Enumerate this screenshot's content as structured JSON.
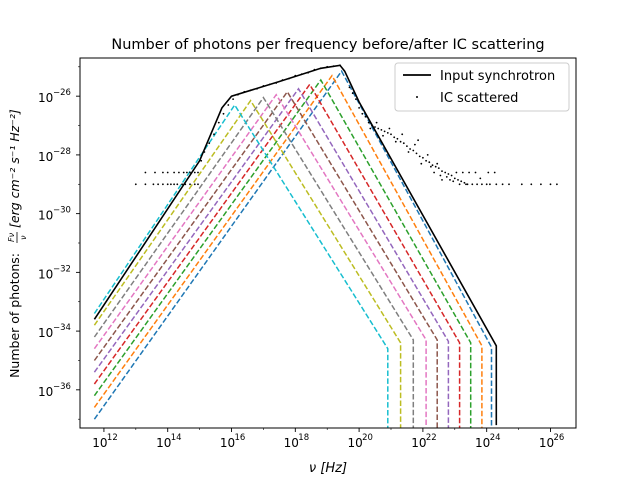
{
  "chart_data": {
    "type": "line",
    "title": "Number of photons per frequency before/after IC scattering",
    "xlabel": "ν [Hz]",
    "ylabel_main": "Number of photons: ",
    "ylabel_frac_num": "Fν",
    "ylabel_frac_den": "ν",
    "ylabel_units": "[erg cm⁻² s⁻¹ Hz⁻²]",
    "xscale": "log",
    "yscale": "log",
    "xlim_log10": [
      11.25,
      26.8
    ],
    "ylim_log10": [
      -37.3,
      -24.7
    ],
    "x_ticks": [
      {
        "exp": 12,
        "base": "10",
        "sup": "12"
      },
      {
        "exp": 14,
        "base": "10",
        "sup": "14"
      },
      {
        "exp": 16,
        "base": "10",
        "sup": "16"
      },
      {
        "exp": 18,
        "base": "10",
        "sup": "18"
      },
      {
        "exp": 20,
        "base": "10",
        "sup": "20"
      },
      {
        "exp": 22,
        "base": "10",
        "sup": "22"
      },
      {
        "exp": 24,
        "base": "10",
        "sup": "24"
      },
      {
        "exp": 26,
        "base": "10",
        "sup": "26"
      }
    ],
    "y_ticks": [
      {
        "exp": -26,
        "base": "10",
        "sup": "−26"
      },
      {
        "exp": -28,
        "base": "10",
        "sup": "−28"
      },
      {
        "exp": -30,
        "base": "10",
        "sup": "−30"
      },
      {
        "exp": -32,
        "base": "10",
        "sup": "−32"
      },
      {
        "exp": -34,
        "base": "10",
        "sup": "−34"
      },
      {
        "exp": -36,
        "base": "10",
        "sup": "−36"
      }
    ],
    "legend": {
      "placement": "top-right",
      "entries": [
        {
          "label": "Input synchrotron",
          "style": "line",
          "color": "#000000"
        },
        {
          "label": "IC scattered",
          "style": "dot",
          "color": "#000000"
        }
      ]
    },
    "synchrotron": {
      "color": "#000000",
      "points": [
        [
          11.7,
          -33.6
        ],
        [
          15.0,
          -28.2
        ],
        [
          15.7,
          -26.4
        ],
        [
          16.0,
          -26.0
        ],
        [
          17.5,
          -25.5
        ],
        [
          18.8,
          -25.05
        ],
        [
          19.4,
          -24.95
        ],
        [
          19.55,
          -25.15
        ],
        [
          20.0,
          -26.2
        ],
        [
          24.3,
          -34.5
        ],
        [
          24.3,
          -37.2
        ]
      ]
    },
    "ic_dashed_series": [
      {
        "color": "#1f77b4",
        "points": [
          [
            11.7,
            -37.0
          ],
          [
            19.45,
            -25.15
          ],
          [
            24.15,
            -34.55
          ],
          [
            24.15,
            -37.3
          ]
        ]
      },
      {
        "color": "#ff7f0e",
        "points": [
          [
            11.7,
            -36.6
          ],
          [
            19.15,
            -25.3
          ],
          [
            23.85,
            -34.5
          ],
          [
            23.85,
            -37.3
          ]
        ]
      },
      {
        "color": "#2ca02c",
        "points": [
          [
            11.7,
            -36.2
          ],
          [
            18.8,
            -25.45
          ],
          [
            23.5,
            -34.4
          ],
          [
            23.5,
            -37.3
          ]
        ]
      },
      {
        "color": "#d62728",
        "points": [
          [
            11.7,
            -35.8
          ],
          [
            18.45,
            -25.6
          ],
          [
            23.15,
            -34.4
          ],
          [
            23.15,
            -37.3
          ]
        ]
      },
      {
        "color": "#9467bd",
        "points": [
          [
            11.7,
            -35.4
          ],
          [
            18.1,
            -25.75
          ],
          [
            22.8,
            -34.35
          ],
          [
            22.8,
            -37.3
          ]
        ]
      },
      {
        "color": "#8c564b",
        "points": [
          [
            11.7,
            -35.0
          ],
          [
            17.75,
            -25.85
          ],
          [
            22.45,
            -34.3
          ],
          [
            22.45,
            -37.3
          ]
        ]
      },
      {
        "color": "#e377c2",
        "points": [
          [
            11.7,
            -34.6
          ],
          [
            17.4,
            -25.95
          ],
          [
            22.1,
            -34.3
          ],
          [
            22.1,
            -37.3
          ]
        ]
      },
      {
        "color": "#7f7f7f",
        "points": [
          [
            11.7,
            -34.2
          ],
          [
            17.0,
            -26.05
          ],
          [
            21.7,
            -34.3
          ],
          [
            21.7,
            -37.3
          ]
        ]
      },
      {
        "color": "#bcbd22",
        "points": [
          [
            11.7,
            -33.8
          ],
          [
            16.6,
            -26.15
          ],
          [
            21.3,
            -34.4
          ],
          [
            21.3,
            -37.3
          ]
        ]
      },
      {
        "color": "#17becf",
        "points": [
          [
            11.7,
            -33.4
          ],
          [
            16.1,
            -26.3
          ],
          [
            20.9,
            -34.6
          ],
          [
            20.9,
            -37.3
          ]
        ]
      }
    ],
    "ic_scatter": {
      "color": "#000000",
      "points": [
        [
          19.7,
          -25.7
        ],
        [
          19.8,
          -25.9
        ],
        [
          19.9,
          -26.1
        ],
        [
          20.0,
          -26.4
        ],
        [
          20.1,
          -26.6
        ],
        [
          20.2,
          -26.7
        ],
        [
          20.3,
          -26.9
        ],
        [
          20.4,
          -27.0
        ],
        [
          20.5,
          -27.05
        ],
        [
          20.6,
          -27.1
        ],
        [
          20.7,
          -27.15
        ],
        [
          20.8,
          -27.2
        ],
        [
          20.9,
          -27.25
        ],
        [
          21.0,
          -27.3
        ],
        [
          21.1,
          -27.4
        ],
        [
          21.2,
          -27.45
        ],
        [
          21.3,
          -27.55
        ],
        [
          21.4,
          -27.6
        ],
        [
          21.5,
          -27.7
        ],
        [
          21.6,
          -27.8
        ],
        [
          21.7,
          -27.85
        ],
        [
          21.8,
          -27.95
        ],
        [
          21.9,
          -28.05
        ],
        [
          22.0,
          -28.1
        ],
        [
          22.1,
          -28.2
        ],
        [
          22.2,
          -28.25
        ],
        [
          22.3,
          -28.35
        ],
        [
          22.4,
          -28.4
        ],
        [
          22.5,
          -28.45
        ],
        [
          22.6,
          -28.55
        ],
        [
          22.7,
          -28.6
        ],
        [
          22.8,
          -28.65
        ],
        [
          22.9,
          -28.7
        ],
        [
          23.0,
          -28.8
        ],
        [
          23.1,
          -28.85
        ],
        [
          23.2,
          -28.9
        ],
        [
          23.3,
          -28.95
        ],
        [
          23.4,
          -29.0
        ],
        [
          20.35,
          -27.1
        ],
        [
          20.55,
          -26.9
        ],
        [
          20.75,
          -27.35
        ],
        [
          20.95,
          -27.1
        ],
        [
          21.15,
          -27.55
        ],
        [
          21.35,
          -27.3
        ],
        [
          21.55,
          -27.9
        ],
        [
          21.75,
          -27.65
        ],
        [
          21.85,
          -27.5
        ],
        [
          21.95,
          -28.3
        ],
        [
          22.15,
          -28.0
        ],
        [
          22.25,
          -28.4
        ],
        [
          22.35,
          -28.6
        ],
        [
          22.45,
          -28.3
        ],
        [
          22.55,
          -28.7
        ],
        [
          22.75,
          -28.75
        ],
        [
          22.95,
          -28.9
        ],
        [
          23.15,
          -29.0
        ],
        [
          23.35,
          -29.0
        ],
        [
          23.55,
          -29.0
        ],
        [
          23.7,
          -29.0
        ],
        [
          23.85,
          -29.0
        ],
        [
          24.0,
          -29.0
        ],
        [
          24.1,
          -29.0
        ],
        [
          24.3,
          -29.0
        ],
        [
          24.5,
          -29.0
        ],
        [
          24.7,
          -29.0
        ],
        [
          25.1,
          -29.0
        ],
        [
          25.4,
          -29.0
        ],
        [
          25.7,
          -29.0
        ],
        [
          26.0,
          -29.0
        ],
        [
          26.2,
          -29.0
        ],
        [
          22.6,
          -28.85
        ],
        [
          22.85,
          -28.85
        ],
        [
          23.05,
          -28.6
        ],
        [
          23.25,
          -28.6
        ],
        [
          23.45,
          -28.6
        ],
        [
          23.65,
          -28.6
        ],
        [
          23.8,
          -28.8
        ],
        [
          24.05,
          -28.6
        ],
        [
          24.25,
          -28.6
        ],
        [
          13.3,
          -28.6
        ],
        [
          13.6,
          -28.6
        ],
        [
          13.85,
          -28.6
        ],
        [
          14.0,
          -28.6
        ],
        [
          14.2,
          -28.6
        ],
        [
          14.35,
          -28.6
        ],
        [
          14.5,
          -28.6
        ],
        [
          14.6,
          -28.6
        ],
        [
          14.7,
          -28.6
        ],
        [
          14.85,
          -28.6
        ],
        [
          14.95,
          -28.6
        ],
        [
          13.0,
          -29.0
        ],
        [
          13.3,
          -29.0
        ],
        [
          13.55,
          -29.0
        ],
        [
          13.7,
          -29.0
        ],
        [
          13.85,
          -29.0
        ],
        [
          14.0,
          -29.0
        ],
        [
          14.1,
          -29.0
        ],
        [
          14.2,
          -29.0
        ],
        [
          14.3,
          -29.0
        ],
        [
          14.45,
          -29.0
        ],
        [
          14.55,
          -29.0
        ],
        [
          14.7,
          -29.0
        ],
        [
          14.85,
          -29.0
        ],
        [
          14.95,
          -29.0
        ],
        [
          15.05,
          -28.2
        ],
        [
          15.15,
          -27.9
        ],
        [
          15.3,
          -27.6
        ],
        [
          15.45,
          -27.3
        ],
        [
          15.6,
          -26.9
        ],
        [
          15.75,
          -26.6
        ],
        [
          15.9,
          -26.3
        ],
        [
          16.05,
          -26.1
        ],
        [
          16.2,
          -25.95
        ],
        [
          16.4,
          -25.85
        ],
        [
          16.6,
          -25.8
        ],
        [
          16.8,
          -25.75
        ],
        [
          17.0,
          -25.65
        ],
        [
          17.2,
          -25.6
        ],
        [
          17.4,
          -25.55
        ],
        [
          17.6,
          -25.45
        ],
        [
          17.8,
          -25.4
        ],
        [
          18.0,
          -25.3
        ],
        [
          18.2,
          -25.25
        ],
        [
          18.4,
          -25.2
        ],
        [
          18.6,
          -25.1
        ],
        [
          18.8,
          -25.05
        ],
        [
          19.0,
          -25.0
        ],
        [
          19.2,
          -24.98
        ],
        [
          19.4,
          -24.95
        ]
      ]
    }
  }
}
